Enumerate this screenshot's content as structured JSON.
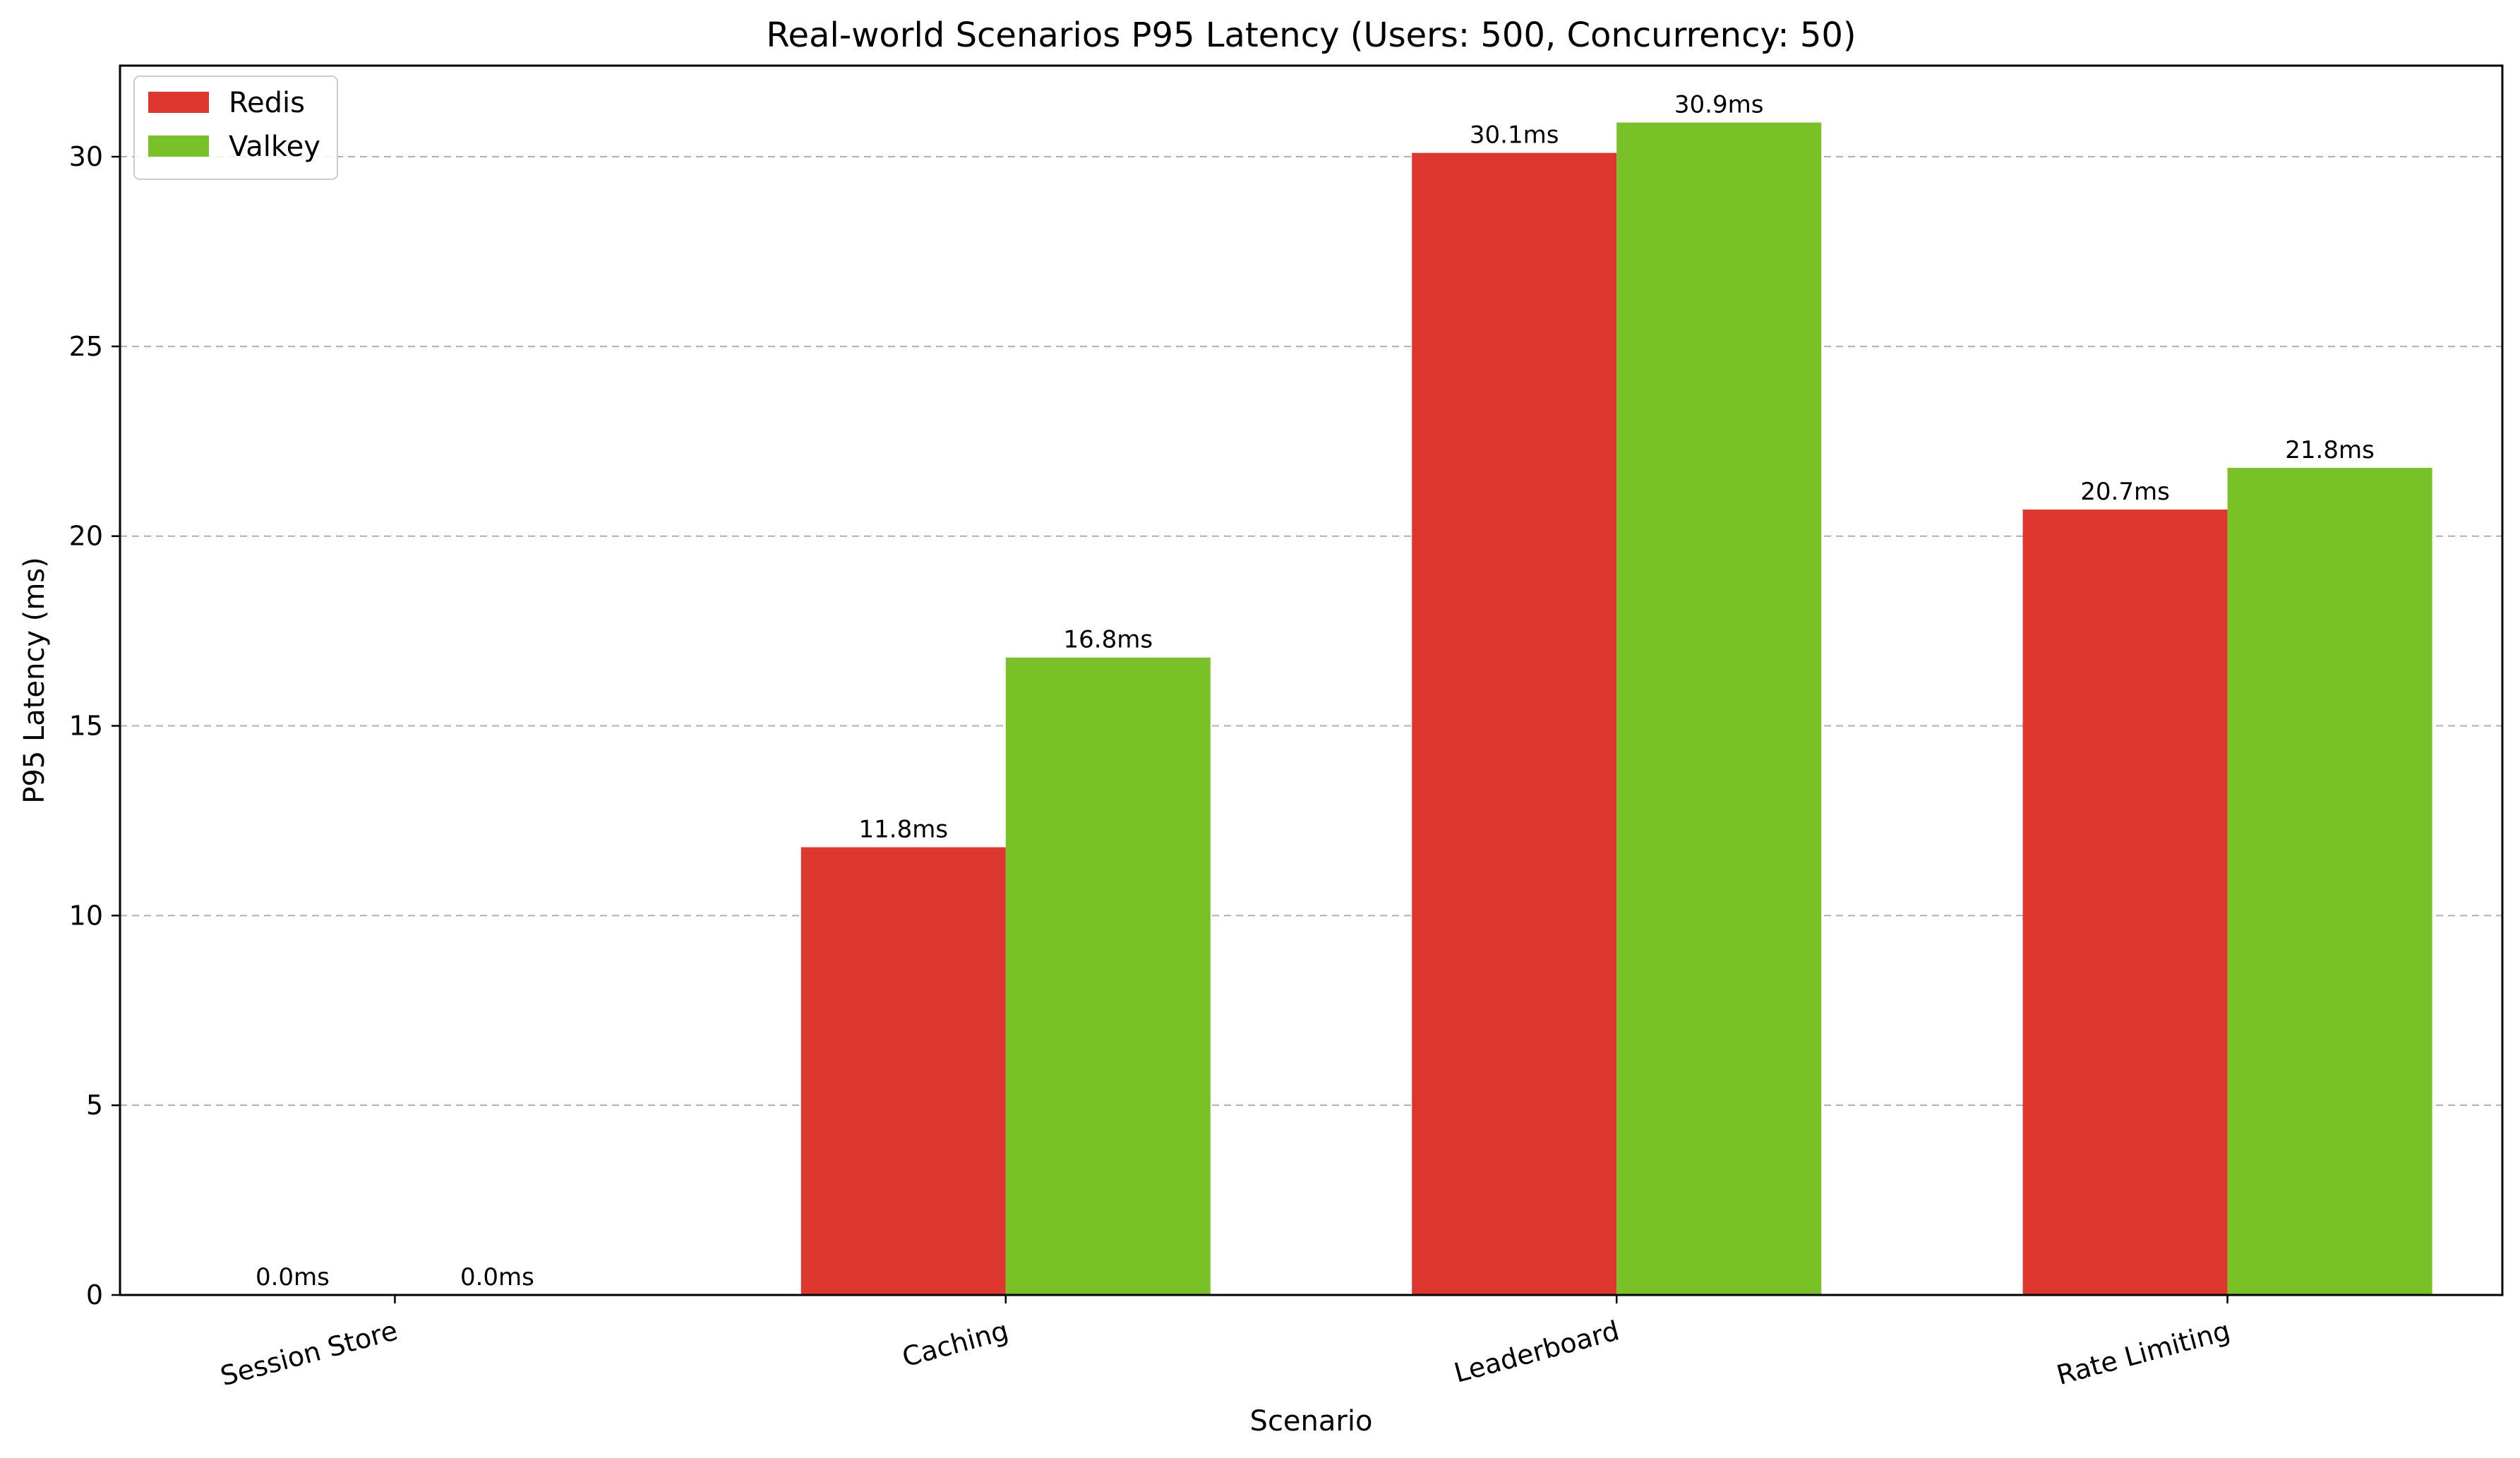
{
  "chart_data": {
    "type": "bar",
    "title": "Real-world Scenarios P95 Latency (Users: 500, Concurrency: 50)",
    "xlabel": "Scenario",
    "ylabel": "P95 Latency (ms)",
    "categories": [
      "Session Store",
      "Caching",
      "Leaderboard",
      "Rate Limiting"
    ],
    "series": [
      {
        "name": "Redis",
        "color": "#dd3730",
        "values": [
          0.0,
          11.8,
          30.1,
          20.7
        ],
        "labels": [
          "0.0ms",
          "11.8ms",
          "30.1ms",
          "20.7ms"
        ]
      },
      {
        "name": "Valkey",
        "color": "#78c126",
        "values": [
          0.0,
          16.8,
          30.9,
          21.8
        ],
        "labels": [
          "0.0ms",
          "16.8ms",
          "30.9ms",
          "21.8ms"
        ]
      }
    ],
    "ylim": [
      0,
      32.4
    ],
    "yticks": [
      0,
      5,
      10,
      15,
      20,
      25,
      30
    ],
    "ytick_labels": [
      "0",
      "5",
      "10",
      "15",
      "20",
      "25",
      "30"
    ],
    "grid": "y-dashed",
    "legend_position": "top-left"
  }
}
